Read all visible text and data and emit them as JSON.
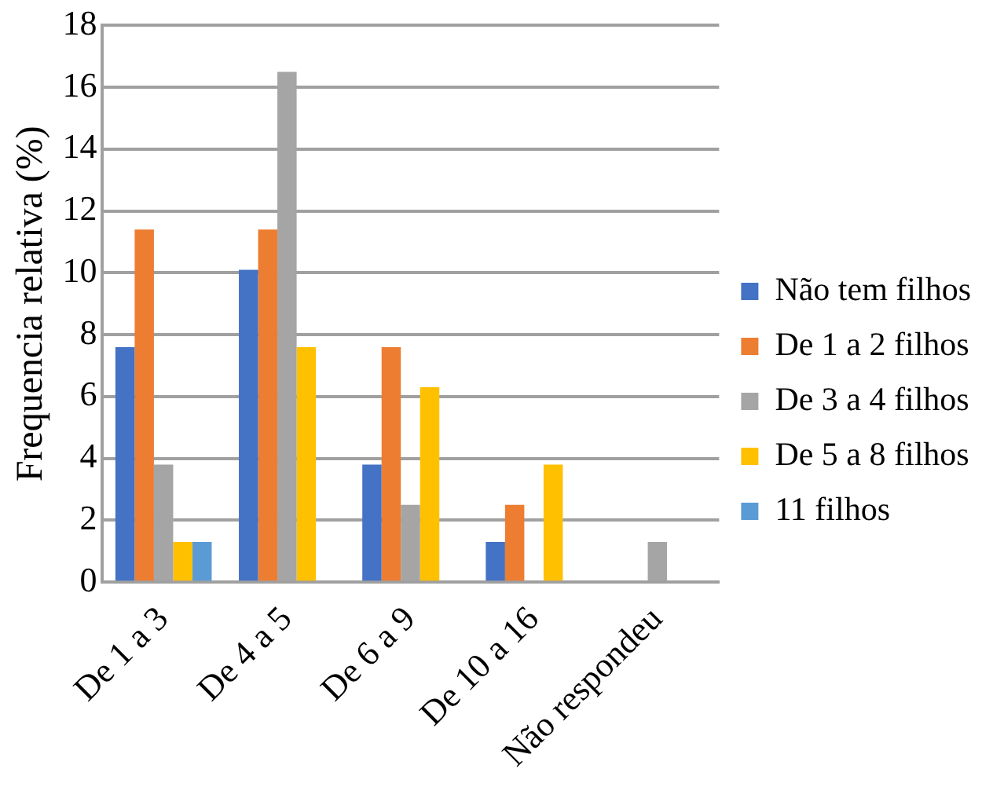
{
  "chart_data": {
    "type": "bar",
    "ylabel": "Frequencia relativa (%)",
    "categories": [
      "De 1 a 3",
      "De 4 a 5",
      "De 6 a 9",
      "De 10 a 16",
      "Não respondeu"
    ],
    "series": [
      {
        "name": "Não tem filhos",
        "color": "#4472c4",
        "values": [
          7.6,
          10.1,
          3.8,
          1.3,
          null
        ]
      },
      {
        "name": "De 1 a 2 filhos",
        "color": "#ed7d31",
        "values": [
          11.4,
          11.4,
          7.6,
          2.5,
          null
        ]
      },
      {
        "name": "De 3 a 4 filhos",
        "color": "#a5a5a5",
        "values": [
          3.8,
          16.5,
          2.5,
          null,
          1.3
        ]
      },
      {
        "name": "De 5 a 8 filhos",
        "color": "#ffc000",
        "values": [
          1.3,
          7.6,
          6.3,
          3.8,
          null
        ]
      },
      {
        "name": "11 filhos",
        "color": "#5b9bd5",
        "values": [
          1.3,
          null,
          null,
          null,
          null
        ]
      }
    ],
    "ylim": [
      0,
      18
    ],
    "yticks": [
      0,
      2,
      4,
      6,
      8,
      10,
      12,
      14,
      16,
      18
    ],
    "grid": "y",
    "legend": "right"
  }
}
